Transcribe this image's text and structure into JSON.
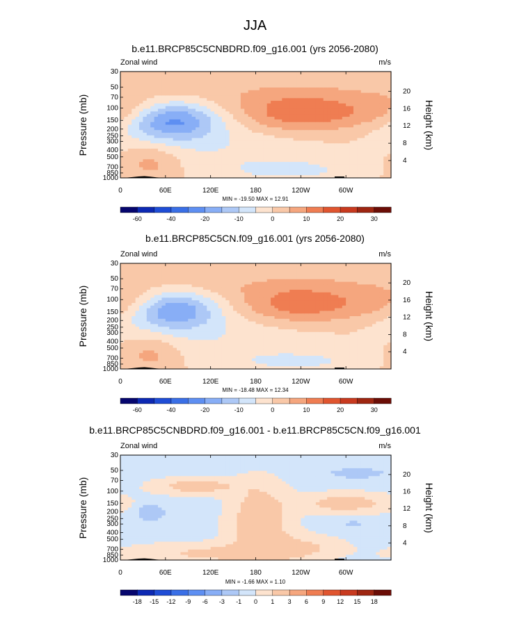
{
  "page_title": "JJA",
  "chart_data": [
    {
      "type": "heatmap",
      "title": "b.e11.BRCP85C5CNBDRD.f09_g16.001 (yrs 2056-2080)",
      "left_label": "Zonal wind",
      "right_label": "m/s",
      "ylabel": "Pressure (mb)",
      "y2label": "Height (km)",
      "x_ticks": [
        "0",
        "60E",
        "120E",
        "180",
        "120W",
        "60W"
      ],
      "x_tick_lon": [
        0,
        60,
        120,
        180,
        240,
        300
      ],
      "xlim": [
        0,
        360
      ],
      "y_ticks": [
        30,
        50,
        70,
        100,
        150,
        200,
        250,
        300,
        400,
        500,
        700,
        850,
        1000
      ],
      "ylim": [
        1000,
        30
      ],
      "y_scale": "log",
      "height_ticks": [
        20,
        16,
        12,
        8,
        4
      ],
      "stats_text": "MIN = -19.50  MAX = 12.91",
      "min": -19.5,
      "max": 12.91,
      "levels": [
        -70,
        -60,
        -50,
        -40,
        -30,
        -20,
        -15,
        -10,
        -5,
        0,
        5,
        10,
        15,
        20,
        25,
        30,
        35,
        40
      ],
      "colorbar_labels": [
        "-60",
        "-40",
        "-20",
        "-10",
        "0",
        "10",
        "20",
        "30"
      ],
      "colorbar_label_pos": [
        1,
        3,
        5,
        7,
        9,
        11,
        13,
        15
      ],
      "fields": [
        {
          "lon": 70,
          "lev": 150,
          "sx": 42,
          "sy": 0.45,
          "amp": -20
        },
        {
          "lon": 120,
          "lev": 350,
          "sx": 110,
          "sy": 0.7,
          "amp": -5
        },
        {
          "lon": 240,
          "lev": 120,
          "sx": 60,
          "sy": 0.45,
          "amp": 14
        },
        {
          "lon": 360,
          "lev": 110,
          "sx": 40,
          "sy": 0.35,
          "amp": 6
        },
        {
          "lon": 40,
          "lev": 600,
          "sx": 30,
          "sy": 0.45,
          "amp": 8
        },
        {
          "lon": 230,
          "lev": 780,
          "sx": 60,
          "sy": 0.25,
          "amp": -6
        },
        {
          "lon": 180,
          "lev": 60,
          "sx": 220,
          "sy": 0.35,
          "amp": 3
        }
      ],
      "base": 0.5
    },
    {
      "type": "heatmap",
      "title": "b.e11.BRCP85C5CN.f09_g16.001 (yrs 2056-2080)",
      "left_label": "Zonal wind",
      "right_label": "m/s",
      "ylabel": "Pressure (mb)",
      "y2label": "Height (km)",
      "x_ticks": [
        "0",
        "60E",
        "120E",
        "180",
        "120W",
        "60W"
      ],
      "x_tick_lon": [
        0,
        60,
        120,
        180,
        240,
        300
      ],
      "xlim": [
        0,
        360
      ],
      "y_ticks": [
        30,
        50,
        70,
        100,
        150,
        200,
        250,
        300,
        400,
        500,
        700,
        850,
        1000
      ],
      "ylim": [
        1000,
        30
      ],
      "y_scale": "log",
      "height_ticks": [
        20,
        16,
        12,
        8,
        4
      ],
      "stats_text": "MIN = -18.48  MAX = 12.34",
      "min": -18.48,
      "max": 12.34,
      "levels": [
        -70,
        -60,
        -50,
        -40,
        -30,
        -20,
        -15,
        -10,
        -5,
        0,
        5,
        10,
        15,
        20,
        25,
        30,
        35,
        40
      ],
      "colorbar_labels": [
        "-60",
        "-40",
        "-20",
        "-10",
        "0",
        "10",
        "20",
        "30"
      ],
      "colorbar_label_pos": [
        1,
        3,
        5,
        7,
        9,
        11,
        13,
        15
      ],
      "fields": [
        {
          "lon": 72,
          "lev": 140,
          "sx": 40,
          "sy": 0.45,
          "amp": -19
        },
        {
          "lon": 120,
          "lev": 350,
          "sx": 110,
          "sy": 0.7,
          "amp": -5
        },
        {
          "lon": 240,
          "lev": 120,
          "sx": 58,
          "sy": 0.45,
          "amp": 13
        },
        {
          "lon": 360,
          "lev": 110,
          "sx": 40,
          "sy": 0.35,
          "amp": 6
        },
        {
          "lon": 40,
          "lev": 600,
          "sx": 30,
          "sy": 0.45,
          "amp": 8
        },
        {
          "lon": 240,
          "lev": 780,
          "sx": 55,
          "sy": 0.22,
          "amp": -6
        },
        {
          "lon": 180,
          "lev": 60,
          "sx": 220,
          "sy": 0.35,
          "amp": 3
        }
      ],
      "base": 0.5
    },
    {
      "type": "heatmap",
      "title": "b.e11.BRCP85C5CNBDRD.f09_g16.001 - b.e11.BRCP85C5CN.f09_g16.001",
      "left_label": "Zonal wind",
      "right_label": "m/s",
      "ylabel": "Pressure (mb)",
      "y2label": "Height (km)",
      "x_ticks": [
        "0",
        "60E",
        "120E",
        "180",
        "120W",
        "60W"
      ],
      "x_tick_lon": [
        0,
        60,
        120,
        180,
        240,
        300
      ],
      "xlim": [
        0,
        360
      ],
      "y_ticks": [
        30,
        50,
        70,
        100,
        150,
        200,
        250,
        300,
        400,
        500,
        700,
        850,
        1000
      ],
      "ylim": [
        1000,
        30
      ],
      "y_scale": "log",
      "height_ticks": [
        20,
        16,
        12,
        8,
        4
      ],
      "stats_text": "MIN = -1.66  MAX =  1.10",
      "min": -1.66,
      "max": 1.1,
      "levels": [
        -21,
        -18,
        -15,
        -12,
        -9,
        -6,
        -3,
        -1,
        0,
        1,
        3,
        6,
        9,
        12,
        15,
        18,
        21
      ],
      "colorbar_labels": [
        "-18",
        "-15",
        "-12",
        "-9",
        "-6",
        "-3",
        "-1",
        "0",
        "1",
        "3",
        "6",
        "9",
        "12",
        "15",
        "18"
      ],
      "colorbar_label_pos": [
        1,
        2,
        3,
        4,
        5,
        6,
        7,
        8,
        9,
        10,
        11,
        12,
        13,
        14,
        15
      ],
      "fields": [
        {
          "lon": 185,
          "lev": 280,
          "sx": 28,
          "sy": 0.9,
          "amp": 2.4
        },
        {
          "lon": 100,
          "lev": 85,
          "sx": 40,
          "sy": 0.2,
          "amp": 2.0
        },
        {
          "lon": 300,
          "lev": 150,
          "sx": 45,
          "sy": 0.25,
          "amp": 2.0
        },
        {
          "lon": 120,
          "lev": 800,
          "sx": 80,
          "sy": 0.25,
          "amp": 1.6
        },
        {
          "lon": 240,
          "lev": 650,
          "sx": 40,
          "sy": 0.3,
          "amp": 1.4
        },
        {
          "lon": 40,
          "lev": 200,
          "sx": 12,
          "sy": 0.18,
          "amp": -2.0
        },
        {
          "lon": 315,
          "lev": 55,
          "sx": 25,
          "sy": 0.12,
          "amp": -1.5
        },
        {
          "lon": 310,
          "lev": 300,
          "sx": 6,
          "sy": 0.08,
          "amp": -1.5
        }
      ],
      "base": -0.4
    }
  ],
  "colors": {
    "palette": [
      "#06066e",
      "#0d29b3",
      "#1f4dd6",
      "#3a6fe6",
      "#5e8ff2",
      "#88aef6",
      "#adc8f6",
      "#d3e5fa",
      "#fde3cf",
      "#f9c8a8",
      "#f5a67e",
      "#ef7d52",
      "#e0552f",
      "#c83a1f",
      "#9e2611",
      "#6b0d06"
    ],
    "topography": "#000000",
    "frame": "#000000"
  }
}
